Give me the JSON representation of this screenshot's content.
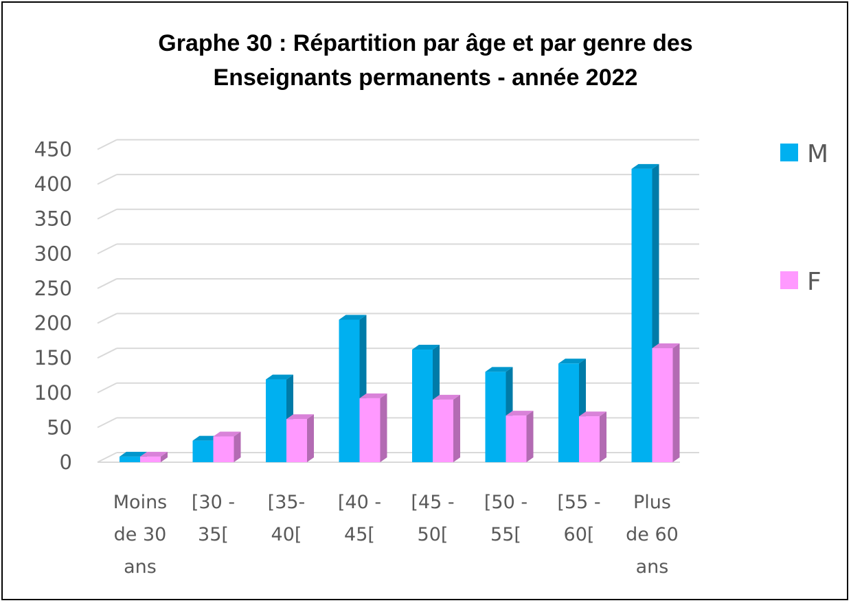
{
  "chart_data": {
    "type": "bar",
    "title_line1": "Graphe 30 : Répartition par âge et par genre des",
    "title_line2": "Enseignants permanents - année 2022",
    "categories": [
      [
        "Moins",
        "de 30",
        "ans"
      ],
      [
        "[30 -",
        "35["
      ],
      [
        "[35-",
        "40["
      ],
      [
        "[40 -",
        "45["
      ],
      [
        "[45 -",
        "50["
      ],
      [
        "[50 -",
        "55["
      ],
      [
        "[55 -",
        "60["
      ],
      [
        "Plus",
        "de 60",
        "ans"
      ]
    ],
    "series": [
      {
        "name": "M",
        "color": "#00B0F0",
        "values": [
          8,
          31,
          119,
          205,
          162,
          130,
          142,
          422
        ]
      },
      {
        "name": "F",
        "color": "#FF99FF",
        "values": [
          8,
          37,
          62,
          92,
          90,
          67,
          66,
          164
        ]
      }
    ],
    "ylim": [
      0,
      450
    ],
    "yticks": [
      0,
      50,
      100,
      150,
      200,
      250,
      300,
      350,
      400,
      450
    ],
    "grid": true,
    "legend_position": "right"
  }
}
